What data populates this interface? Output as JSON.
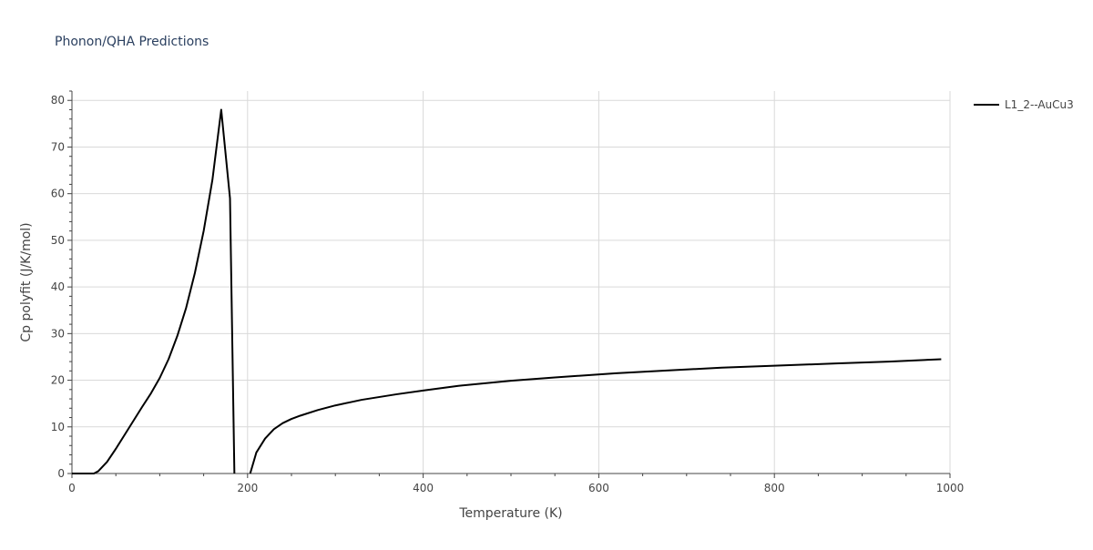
{
  "chart_data": {
    "type": "line",
    "title": "Phonon/QHA Predictions",
    "xlabel": "Temperature (K)",
    "ylabel": "Cp polyfit (J/K/mol)",
    "xlim": [
      0,
      1000
    ],
    "ylim": [
      0,
      82
    ],
    "xticks": [
      0,
      200,
      400,
      600,
      800,
      1000
    ],
    "yticks": [
      0,
      10,
      20,
      30,
      40,
      50,
      60,
      70,
      80
    ],
    "grid": true,
    "legend_position": "top-right",
    "line_color": "#000000",
    "series": [
      {
        "name": "L1_2--AuCu3",
        "x": [
          0,
          25,
          30,
          40,
          50,
          60,
          70,
          80,
          90,
          100,
          110,
          120,
          130,
          140,
          150,
          160,
          170,
          180,
          185,
          190,
          195,
          200,
          203,
          210,
          220,
          230,
          240,
          250,
          260,
          280,
          300,
          330,
          370,
          400,
          440,
          500,
          550,
          620,
          680,
          740,
          800,
          870,
          930,
          990
        ],
        "y": [
          0,
          0,
          0.5,
          2.5,
          5.3,
          8.3,
          11.3,
          14.3,
          17.2,
          20.5,
          24.5,
          29.5,
          35.5,
          43.0,
          52.0,
          63.0,
          78.0,
          59.0,
          0,
          null,
          null,
          null,
          0,
          4.5,
          7.5,
          9.5,
          10.8,
          11.7,
          12.4,
          13.6,
          14.6,
          15.8,
          17.0,
          17.8,
          18.8,
          19.9,
          20.6,
          21.5,
          22.1,
          22.7,
          23.1,
          23.6,
          24.0,
          24.5
        ]
      }
    ]
  }
}
